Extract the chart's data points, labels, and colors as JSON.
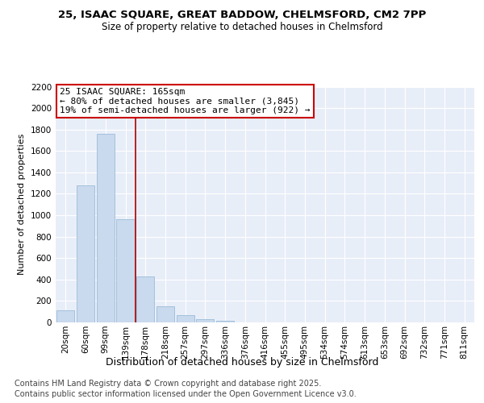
{
  "title": "25, ISAAC SQUARE, GREAT BADDOW, CHELMSFORD, CM2 7PP",
  "subtitle": "Size of property relative to detached houses in Chelmsford",
  "xlabel": "Distribution of detached houses by size in Chelmsford",
  "ylabel": "Number of detached properties",
  "footer_line1": "Contains HM Land Registry data © Crown copyright and database right 2025.",
  "footer_line2": "Contains public sector information licensed under the Open Government Licence v3.0.",
  "categories": [
    "20sqm",
    "60sqm",
    "99sqm",
    "139sqm",
    "178sqm",
    "218sqm",
    "257sqm",
    "297sqm",
    "336sqm",
    "376sqm",
    "416sqm",
    "455sqm",
    "495sqm",
    "534sqm",
    "574sqm",
    "613sqm",
    "653sqm",
    "692sqm",
    "732sqm",
    "771sqm",
    "811sqm"
  ],
  "values": [
    110,
    1280,
    1760,
    960,
    425,
    150,
    70,
    30,
    15,
    0,
    0,
    0,
    0,
    0,
    0,
    0,
    0,
    0,
    0,
    0,
    0
  ],
  "bar_color": "#c9d9ee",
  "bar_edgecolor": "#9bbcd8",
  "vline_x": 3.5,
  "vline_color": "#aa0000",
  "annotation_text": "25 ISAAC SQUARE: 165sqm\n← 80% of detached houses are smaller (3,845)\n19% of semi-detached houses are larger (922) →",
  "annotation_box_color": "#cc0000",
  "ylim": [
    0,
    2200
  ],
  "yticks": [
    0,
    200,
    400,
    600,
    800,
    1000,
    1200,
    1400,
    1600,
    1800,
    2000,
    2200
  ],
  "background_color": "#e8eef8",
  "grid_color": "#ffffff",
  "title_fontsize": 9.5,
  "subtitle_fontsize": 8.5,
  "xlabel_fontsize": 9,
  "ylabel_fontsize": 8,
  "annotation_fontsize": 8,
  "footer_fontsize": 7,
  "tick_fontsize": 7.5
}
